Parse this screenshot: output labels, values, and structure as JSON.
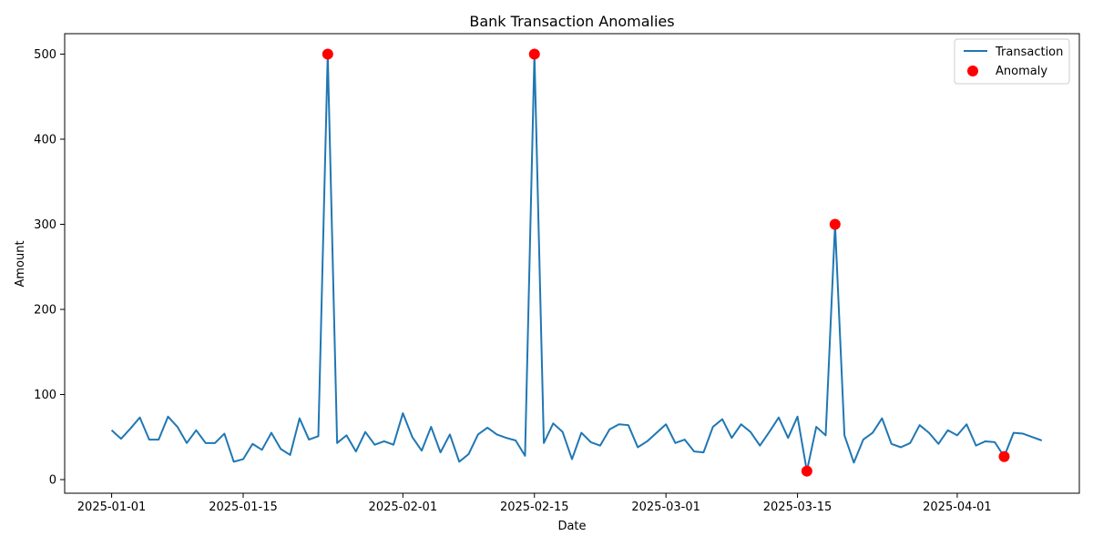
{
  "chart_data": {
    "type": "line",
    "title": "Bank Transaction Anomalies",
    "xlabel": "Date",
    "ylabel": "Amount",
    "x_tick_labels": [
      "2025-01-01",
      "2025-01-15",
      "2025-02-01",
      "2025-02-15",
      "2025-03-01",
      "2025-03-15",
      "2025-04-01"
    ],
    "y_ticks": [
      0,
      100,
      200,
      300,
      400,
      500
    ],
    "xlim": [
      "2024-12-27",
      "2025-04-14"
    ],
    "ylim": [
      -16,
      524
    ],
    "grid": false,
    "legend_position": "top-right",
    "series": [
      {
        "name": "Transaction",
        "kind": "line",
        "color": "#1f77b4",
        "x": [
          "2025-01-01",
          "2025-01-02",
          "2025-01-03",
          "2025-01-04",
          "2025-01-05",
          "2025-01-06",
          "2025-01-07",
          "2025-01-08",
          "2025-01-09",
          "2025-01-10",
          "2025-01-11",
          "2025-01-12",
          "2025-01-13",
          "2025-01-14",
          "2025-01-15",
          "2025-01-16",
          "2025-01-17",
          "2025-01-18",
          "2025-01-19",
          "2025-01-20",
          "2025-01-21",
          "2025-01-22",
          "2025-01-23",
          "2025-01-24",
          "2025-01-25",
          "2025-01-26",
          "2025-01-27",
          "2025-01-28",
          "2025-01-29",
          "2025-01-30",
          "2025-01-31",
          "2025-02-01",
          "2025-02-02",
          "2025-02-03",
          "2025-02-04",
          "2025-02-05",
          "2025-02-06",
          "2025-02-07",
          "2025-02-08",
          "2025-02-09",
          "2025-02-10",
          "2025-02-11",
          "2025-02-12",
          "2025-02-13",
          "2025-02-14",
          "2025-02-15",
          "2025-02-16",
          "2025-02-17",
          "2025-02-18",
          "2025-02-19",
          "2025-02-20",
          "2025-02-21",
          "2025-02-22",
          "2025-02-23",
          "2025-02-24",
          "2025-02-25",
          "2025-02-26",
          "2025-02-27",
          "2025-02-28",
          "2025-03-01",
          "2025-03-02",
          "2025-03-03",
          "2025-03-04",
          "2025-03-05",
          "2025-03-06",
          "2025-03-07",
          "2025-03-08",
          "2025-03-09",
          "2025-03-10",
          "2025-03-11",
          "2025-03-12",
          "2025-03-13",
          "2025-03-14",
          "2025-03-15",
          "2025-03-16",
          "2025-03-17",
          "2025-03-18",
          "2025-03-19",
          "2025-03-20",
          "2025-03-21",
          "2025-03-22",
          "2025-03-23",
          "2025-03-24",
          "2025-03-25",
          "2025-03-26",
          "2025-03-27",
          "2025-03-28",
          "2025-03-29",
          "2025-03-30",
          "2025-03-31",
          "2025-04-01",
          "2025-04-02",
          "2025-04-03",
          "2025-04-04",
          "2025-04-05",
          "2025-04-06",
          "2025-04-07",
          "2025-04-08",
          "2025-04-09",
          "2025-04-10"
        ],
        "values": [
          58,
          48,
          60,
          73,
          47,
          47,
          74,
          62,
          43,
          58,
          43,
          43,
          54,
          21,
          24,
          42,
          35,
          55,
          36,
          29,
          72,
          47,
          51,
          500,
          43,
          52,
          33,
          56,
          41,
          45,
          41,
          78,
          50,
          34,
          62,
          32,
          53,
          21,
          30,
          53,
          61,
          53,
          49,
          46,
          28,
          500,
          43,
          66,
          56,
          24,
          55,
          44,
          40,
          59,
          65,
          64,
          38,
          45,
          55,
          65,
          43,
          47,
          33,
          32,
          62,
          71,
          49,
          65,
          56,
          40,
          56,
          73,
          49,
          74,
          10,
          62,
          52,
          300,
          52,
          20,
          47,
          55,
          72,
          42,
          38,
          43,
          64,
          55,
          42,
          58,
          52,
          65,
          40,
          45,
          44,
          27,
          55,
          54,
          50,
          46
        ]
      },
      {
        "name": "Anomaly",
        "kind": "scatter",
        "color": "#ff0000",
        "x": [
          "2025-01-24",
          "2025-02-15",
          "2025-03-16",
          "2025-03-19",
          "2025-04-06"
        ],
        "values": [
          500,
          500,
          10,
          300,
          27
        ]
      }
    ]
  }
}
